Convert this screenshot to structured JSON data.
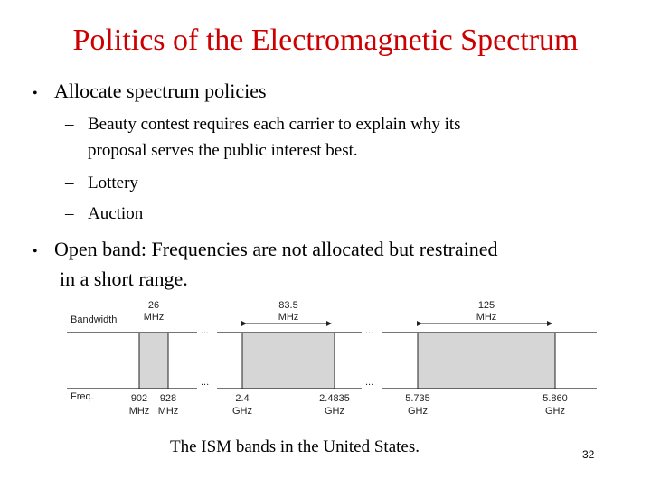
{
  "slide": {
    "title": "Politics of the Electromagnetic Spectrum",
    "bullets": [
      {
        "text": "Allocate spectrum policies",
        "subitems": [
          "Beauty contest requires each carrier to explain why its",
          "proposal serves the public interest best.",
          "Lottery",
          "Auction"
        ]
      },
      {
        "text_line1": "Open band: Frequencies are not allocated but restrained",
        "text_line2": "in a short range."
      }
    ],
    "caption": "The ISM bands in the United States.",
    "page_number": "32"
  },
  "figure": {
    "row_labels": {
      "bandwidth": "Bandwidth",
      "freq": "Freq."
    },
    "ellipsis": "...",
    "bands": [
      {
        "bandwidth_value": "26",
        "bandwidth_unit": "MHz",
        "start_value": "902",
        "start_unit": "MHz",
        "end_value": "928",
        "end_unit": "MHz"
      },
      {
        "bandwidth_value": "83.5",
        "bandwidth_unit": "MHz",
        "start_value": "2.4",
        "start_unit": "GHz",
        "end_value": "2.4835",
        "end_unit": "GHz"
      },
      {
        "bandwidth_value": "125",
        "bandwidth_unit": "MHz",
        "start_value": "5.735",
        "start_unit": "GHz",
        "end_value": "5.860",
        "end_unit": "GHz"
      }
    ],
    "band_fill": "#d6d6d6"
  }
}
